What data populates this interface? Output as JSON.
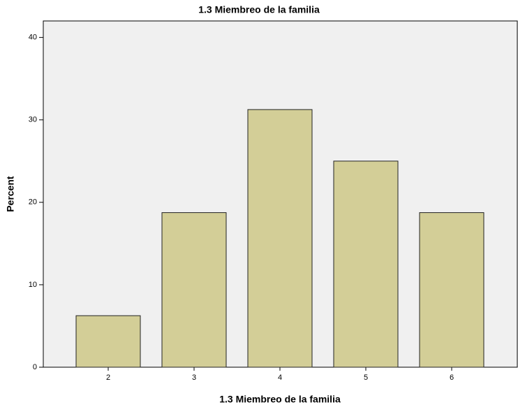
{
  "chart_data": {
    "type": "bar",
    "title": "1.3 Miembreo de la familia",
    "x_label": "1.3 Miembreo de la familia",
    "y_label": "Percent",
    "categories": [
      "2",
      "3",
      "4",
      "5",
      "6"
    ],
    "values": [
      6.25,
      18.75,
      31.25,
      25,
      18.75
    ],
    "color": "#d3ce97",
    "ylim": [
      0,
      42
    ],
    "yticks": [
      0,
      10,
      20,
      30,
      40
    ],
    "grid": false
  }
}
